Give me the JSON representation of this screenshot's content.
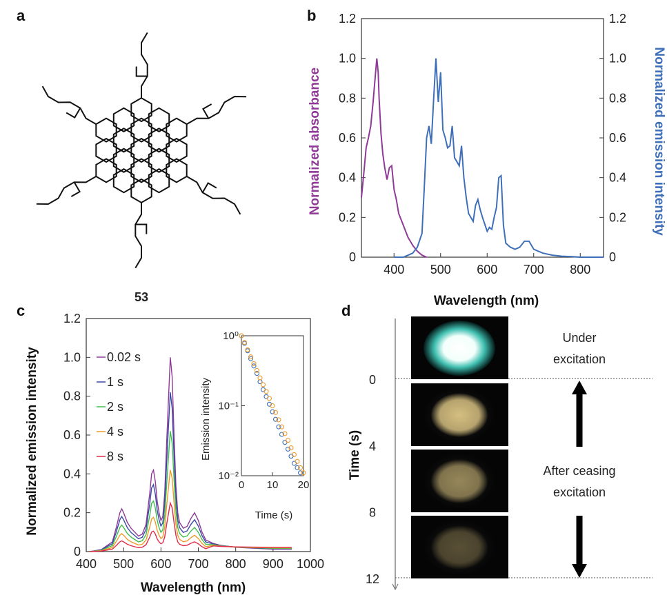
{
  "panels": {
    "a": {
      "label": "a",
      "compound_number": "53"
    },
    "d": {
      "label": "d",
      "ylabel": "Time (s)",
      "ticks": [
        "0",
        "4",
        "8",
        "12"
      ],
      "tick_values": [
        0,
        4,
        8,
        12
      ],
      "annotations": [
        "Under",
        "excitation",
        "After ceasing",
        "excitation"
      ],
      "photos": [
        {
          "name": "photo-under-excitation",
          "brightness": 1.0
        },
        {
          "name": "photo-after-0s",
          "brightness": 0.85
        },
        {
          "name": "photo-after-4s",
          "brightness": 0.6
        },
        {
          "name": "photo-after-8s",
          "brightness": 0.35
        }
      ]
    }
  },
  "chart_data": [
    {
      "label": "b",
      "type": "line",
      "xlabel": "Wavelength (nm)",
      "ylabel_left": "Normalized absorbance",
      "ylabel_right": "Normalized emission intensity",
      "xlim": [
        330,
        850
      ],
      "ylim": [
        0,
        1.2
      ],
      "xticks": [
        "400",
        "500",
        "600",
        "700",
        "800"
      ],
      "yticks": [
        "0",
        "0.2",
        "0.4",
        "0.6",
        "0.8",
        "1.0",
        "1.2"
      ],
      "colors": {
        "absorbance": "#8e3a96",
        "emission": "#3e6fb8"
      },
      "series": [
        {
          "key": "absorbance",
          "color": "#8e3a96",
          "x": [
            330,
            335,
            340,
            345,
            350,
            355,
            360,
            363,
            366,
            368,
            372,
            376,
            380,
            385,
            390,
            395,
            400,
            405,
            410,
            415,
            420,
            430,
            440,
            450,
            460,
            470
          ],
          "y": [
            0.3,
            0.42,
            0.55,
            0.6,
            0.66,
            0.78,
            0.92,
            1.0,
            0.93,
            0.8,
            0.62,
            0.52,
            0.45,
            0.39,
            0.45,
            0.46,
            0.34,
            0.29,
            0.22,
            0.19,
            0.16,
            0.1,
            0.06,
            0.03,
            0.01,
            0.0
          ]
        },
        {
          "key": "emission",
          "color": "#3e6fb8",
          "x": [
            400,
            420,
            440,
            450,
            460,
            465,
            470,
            475,
            480,
            485,
            490,
            495,
            500,
            505,
            510,
            515,
            520,
            525,
            530,
            540,
            545,
            550,
            555,
            560,
            570,
            575,
            580,
            585,
            590,
            600,
            605,
            610,
            615,
            620,
            625,
            630,
            635,
            640,
            650,
            660,
            670,
            680,
            690,
            700,
            710,
            720,
            740,
            760,
            780,
            800,
            850
          ],
          "y": [
            0.0,
            0.0,
            0.02,
            0.05,
            0.12,
            0.35,
            0.6,
            0.66,
            0.57,
            0.79,
            1.0,
            0.78,
            0.93,
            0.64,
            0.6,
            0.55,
            0.56,
            0.66,
            0.5,
            0.46,
            0.56,
            0.4,
            0.3,
            0.22,
            0.18,
            0.26,
            0.29,
            0.24,
            0.2,
            0.13,
            0.15,
            0.14,
            0.2,
            0.25,
            0.4,
            0.41,
            0.16,
            0.07,
            0.05,
            0.04,
            0.05,
            0.08,
            0.08,
            0.04,
            0.03,
            0.02,
            0.01,
            0.005,
            0.003,
            0.0,
            0.0
          ]
        }
      ]
    },
    {
      "label": "c",
      "type": "line",
      "xlabel": "Wavelength (nm)",
      "ylabel": "Normalized emission intensity",
      "xlim": [
        400,
        1000
      ],
      "ylim": [
        0,
        1.2
      ],
      "xticks": [
        "400",
        "500",
        "600",
        "700",
        "800",
        "900",
        "1000"
      ],
      "yticks": [
        "0",
        "0.2",
        "0.4",
        "0.6",
        "0.8",
        "1.0",
        "1.2"
      ],
      "x": [
        410,
        440,
        470,
        480,
        490,
        495,
        500,
        510,
        520,
        530,
        540,
        550,
        560,
        570,
        575,
        580,
        585,
        590,
        595,
        600,
        605,
        610,
        615,
        620,
        625,
        630,
        635,
        640,
        645,
        650,
        660,
        670,
        680,
        690,
        700,
        710,
        720,
        740,
        760,
        800,
        850,
        900,
        950
      ],
      "series": [
        {
          "name": "0.02 s",
          "color": "#8e3a96",
          "scale": 1.0
        },
        {
          "name": "1 s",
          "color": "#3a49a6",
          "scale": 0.82
        },
        {
          "name": "2 s",
          "color": "#3fbf4a",
          "scale": 0.62
        },
        {
          "name": "4 s",
          "color": "#ef9a2a",
          "scale": 0.42
        },
        {
          "name": "8 s",
          "color": "#e02b4a",
          "scale": 0.25
        }
      ],
      "shape": [
        0.0,
        0.01,
        0.05,
        0.12,
        0.2,
        0.22,
        0.2,
        0.15,
        0.12,
        0.1,
        0.08,
        0.09,
        0.14,
        0.3,
        0.4,
        0.42,
        0.36,
        0.26,
        0.2,
        0.16,
        0.18,
        0.3,
        0.55,
        0.78,
        1.0,
        0.9,
        0.6,
        0.34,
        0.2,
        0.15,
        0.12,
        0.13,
        0.17,
        0.2,
        0.16,
        0.1,
        0.06,
        0.03,
        0.02,
        0.01,
        0.005,
        0.0,
        0.0
      ],
      "inset": {
        "type": "scatter",
        "ylabel": "Emission intensity",
        "xlabel": "Time (s)",
        "xticks": [
          "0",
          "10",
          "20"
        ],
        "yticks": [
          "10⁰",
          "10⁻¹",
          "10⁻²"
        ],
        "xlim": [
          0,
          20
        ],
        "ylim": [
          0.01,
          1
        ],
        "scale": "log",
        "series": [
          {
            "name": "blue",
            "color": "#3e6fb8",
            "x": [
              0,
              1,
              2,
              3,
              4,
              5,
              6,
              7,
              8,
              9,
              10,
              11,
              12,
              13,
              14,
              15,
              16,
              17,
              18,
              19
            ],
            "y": [
              1.0,
              0.78,
              0.61,
              0.47,
              0.37,
              0.29,
              0.22,
              0.17,
              0.135,
              0.105,
              0.082,
              0.064,
              0.05,
              0.039,
              0.03,
              0.024,
              0.019,
              0.015,
              0.013,
              0.011
            ]
          },
          {
            "name": "orange",
            "color": "#ef9a2a",
            "x": [
              0,
              1,
              2,
              3,
              4,
              5,
              6,
              7,
              8,
              9,
              10,
              11,
              12,
              13,
              14,
              15,
              16,
              17,
              18,
              19,
              20
            ],
            "y": [
              1.0,
              0.8,
              0.63,
              0.5,
              0.4,
              0.32,
              0.25,
              0.2,
              0.16,
              0.127,
              0.1,
              0.08,
              0.063,
              0.05,
              0.04,
              0.032,
              0.025,
              0.02,
              0.016,
              0.013,
              0.011
            ]
          }
        ]
      }
    }
  ]
}
